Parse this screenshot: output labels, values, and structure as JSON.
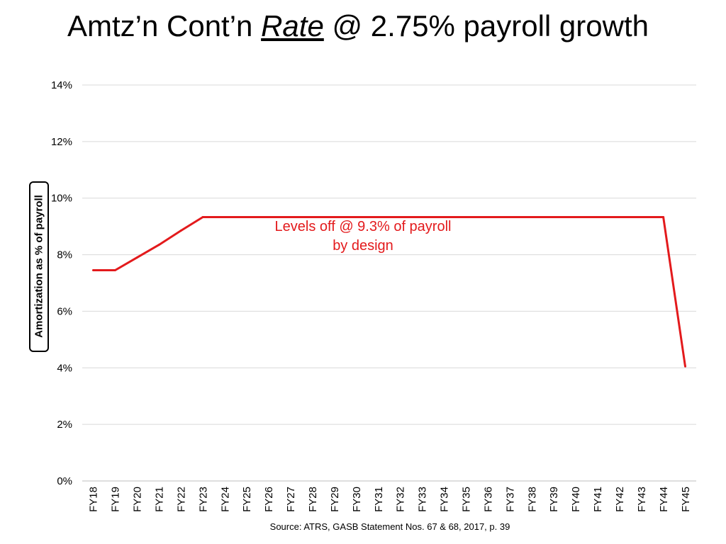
{
  "slide": {
    "title_prefix": "Amtz’n Cont’n ",
    "title_emphasis": "Rate",
    "title_suffix": " @ 2.75% payroll growth",
    "source": "Source:  ATRS, GASB Statement Nos. 67 & 68, 2017, p. 39"
  },
  "chart_data": {
    "type": "line",
    "title": "Amtz’n Cont’n Rate @ 2.75% payroll growth",
    "xlabel": "",
    "ylabel": "Amortization as % of payroll",
    "ylim": [
      0,
      14
    ],
    "yticks": [
      "0%",
      "2%",
      "4%",
      "6%",
      "8%",
      "10%",
      "12%",
      "14%"
    ],
    "grid": true,
    "categories": [
      "FY18",
      "FY19",
      "FY20",
      "FY21",
      "FY22",
      "FY23",
      "FY24",
      "FY25",
      "FY26",
      "FY27",
      "FY28",
      "FY29",
      "FY30",
      "FY31",
      "FY32",
      "FY33",
      "FY34",
      "FY35",
      "FY36",
      "FY37",
      "FY38",
      "FY39",
      "FY40",
      "FY41",
      "FY42",
      "FY43",
      "FY44",
      "FY45"
    ],
    "series": [
      {
        "values": [
          7.45,
          7.45,
          7.9,
          8.35,
          8.85,
          9.33,
          9.33,
          9.33,
          9.33,
          9.33,
          9.33,
          9.33,
          9.33,
          9.33,
          9.33,
          9.33,
          9.33,
          9.33,
          9.33,
          9.33,
          9.33,
          9.33,
          9.33,
          9.33,
          9.33,
          9.33,
          9.33,
          4.05
        ],
        "color": "#e31a1c"
      }
    ],
    "annotation": {
      "line1": "Levels off @ 9.3% of payroll",
      "line2": "by design",
      "color": "#e31a1c"
    }
  }
}
